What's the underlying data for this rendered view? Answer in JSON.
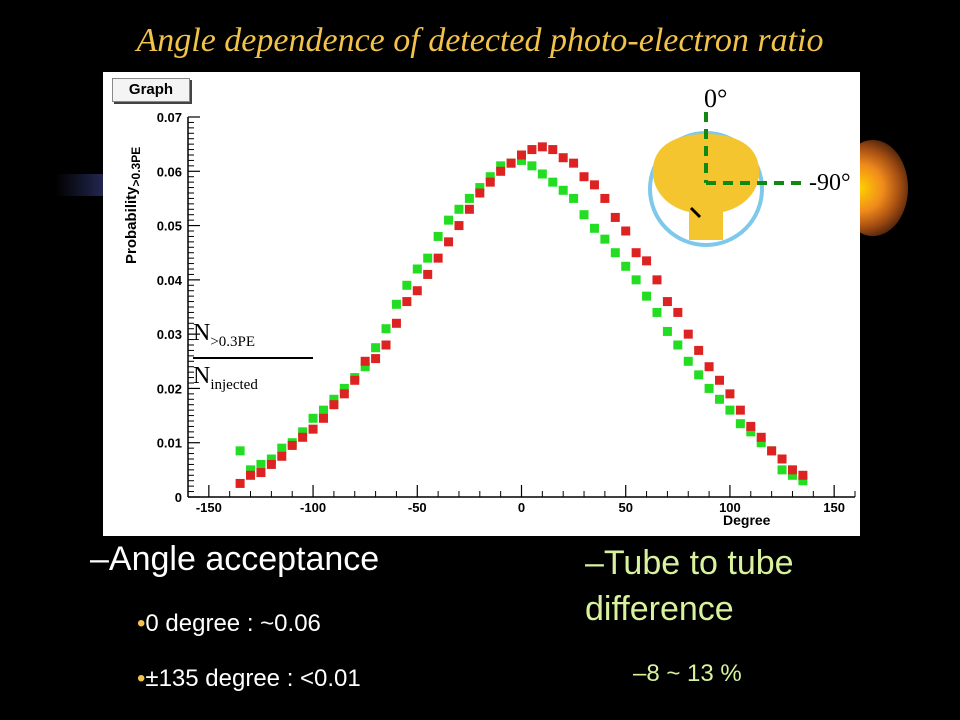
{
  "slide": {
    "title": "Angle dependence of detected photo-electron ratio",
    "bullets": {
      "angle_acceptance": "–Angle acceptance",
      "zero_degree": "0 degree : ~0.06",
      "wide_angle": "±135 degree : <0.01",
      "tube_to_tube": "–Tube to tube difference",
      "tube_range": "–8 ~ 13 %"
    },
    "bullet_marker": "•"
  },
  "graph_panel": {
    "tag": "Graph",
    "ylabel_main": "Probability",
    "ylabel_sub": ">0.3PE",
    "xlabel": "Degree",
    "ratio_num": "N",
    "ratio_num_sub": ">0.3PE",
    "ratio_den": "N",
    "ratio_den_sub": "injected",
    "inset_zero_label": "0°",
    "inset_neg_label": "-90°"
  },
  "colors": {
    "title": "#f2c34a",
    "green_series": "#22dd22",
    "red_series": "#dd2222",
    "pmt": "#f5c530",
    "pmt_outline": "#7ec8ec",
    "axis_dash": "#118811",
    "tube_text": "#d8f29e"
  },
  "chart_data": {
    "type": "scatter",
    "xlabel": "Degree",
    "ylabel": "Probability >0.3PE",
    "xlim": [
      -160,
      160
    ],
    "ylim": [
      0,
      0.07
    ],
    "x_ticks": [
      -150,
      -100,
      -50,
      0,
      50,
      100,
      150
    ],
    "y_ticks": [
      0,
      0.01,
      0.02,
      0.03,
      0.04,
      0.05,
      0.06,
      0.07
    ],
    "grid": false,
    "series": [
      {
        "color": "green",
        "x": [
          -135,
          -130,
          -125,
          -120,
          -115,
          -110,
          -105,
          -100,
          -95,
          -90,
          -85,
          -80,
          -75,
          -70,
          -65,
          -60,
          -55,
          -50,
          -45,
          -40,
          -35,
          -30,
          -25,
          -20,
          -15,
          -10,
          -5,
          0,
          5,
          10,
          15,
          20,
          25,
          30,
          35,
          40,
          45,
          50,
          55,
          60,
          65,
          70,
          75,
          80,
          85,
          90,
          95,
          100,
          105,
          110,
          115,
          120,
          125,
          130,
          135
        ],
        "y": [
          0.0085,
          0.005,
          0.006,
          0.007,
          0.009,
          0.01,
          0.012,
          0.0145,
          0.016,
          0.018,
          0.02,
          0.022,
          0.024,
          0.0275,
          0.031,
          0.0355,
          0.039,
          0.042,
          0.044,
          0.048,
          0.051,
          0.053,
          0.055,
          0.057,
          0.059,
          0.061,
          0.0615,
          0.062,
          0.061,
          0.0595,
          0.058,
          0.0565,
          0.055,
          0.052,
          0.0495,
          0.0475,
          0.045,
          0.0425,
          0.04,
          0.037,
          0.034,
          0.0305,
          0.028,
          0.025,
          0.0225,
          0.02,
          0.018,
          0.016,
          0.0135,
          0.012,
          0.01,
          0.0085,
          0.005,
          0.004,
          0.003
        ]
      },
      {
        "color": "red",
        "x": [
          -135,
          -130,
          -125,
          -120,
          -115,
          -110,
          -105,
          -100,
          -95,
          -90,
          -85,
          -80,
          -75,
          -70,
          -65,
          -60,
          -55,
          -50,
          -45,
          -40,
          -35,
          -30,
          -25,
          -20,
          -15,
          -10,
          -5,
          0,
          5,
          10,
          15,
          20,
          25,
          30,
          35,
          40,
          45,
          50,
          55,
          60,
          65,
          70,
          75,
          80,
          85,
          90,
          95,
          100,
          105,
          110,
          115,
          120,
          125,
          130,
          135
        ],
        "y": [
          0.0025,
          0.004,
          0.0045,
          0.006,
          0.0075,
          0.0095,
          0.011,
          0.0125,
          0.0145,
          0.017,
          0.019,
          0.0215,
          0.025,
          0.0255,
          0.028,
          0.032,
          0.036,
          0.038,
          0.041,
          0.044,
          0.047,
          0.05,
          0.053,
          0.056,
          0.058,
          0.06,
          0.0615,
          0.063,
          0.064,
          0.0645,
          0.064,
          0.0625,
          0.0615,
          0.059,
          0.0575,
          0.055,
          0.0515,
          0.049,
          0.045,
          0.0435,
          0.04,
          0.036,
          0.034,
          0.03,
          0.027,
          0.024,
          0.0215,
          0.019,
          0.016,
          0.013,
          0.011,
          0.0085,
          0.007,
          0.005,
          0.004
        ]
      }
    ]
  }
}
